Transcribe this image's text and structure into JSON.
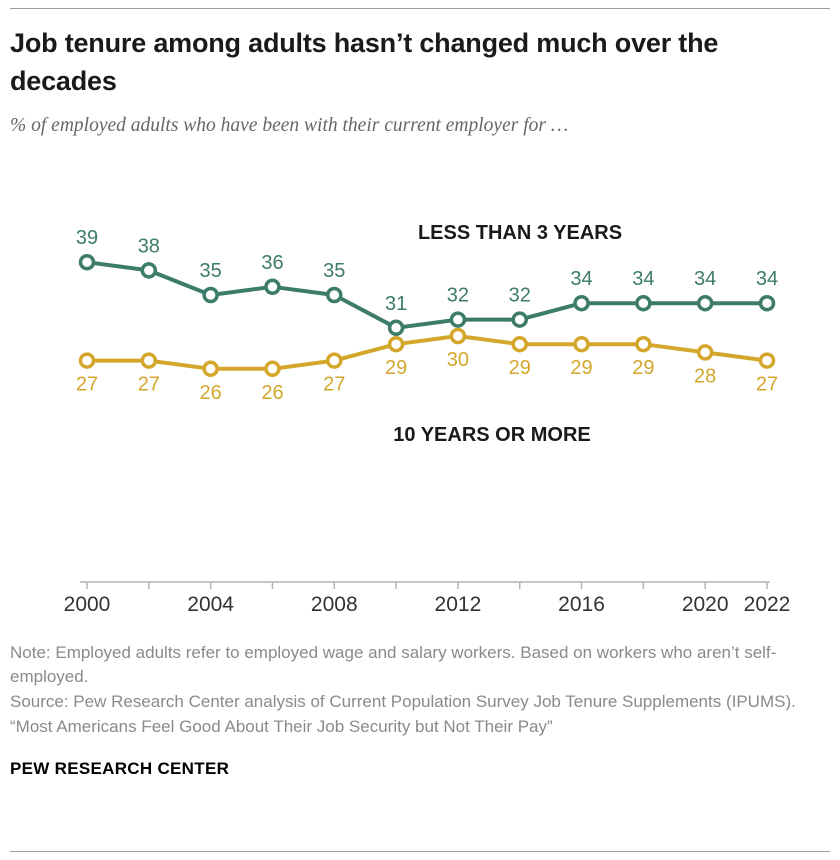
{
  "header": {
    "title": "Job tenure among adults hasn’t changed much over the decades",
    "subtitle": "% of employed adults who have been with their current employer for …"
  },
  "chart_data": {
    "type": "line",
    "x": [
      2000,
      2002,
      2004,
      2006,
      2008,
      2010,
      2012,
      2014,
      2016,
      2018,
      2020,
      2022
    ],
    "x_tick_labels": [
      2000,
      2004,
      2008,
      2012,
      2016,
      2020,
      2022
    ],
    "series": [
      {
        "name": "LESS THAN 3 YEARS",
        "color": "#3D7B6A",
        "values": [
          39,
          38,
          35,
          36,
          35,
          31,
          32,
          32,
          34,
          34,
          34,
          34
        ],
        "label_position": "above"
      },
      {
        "name": "10 YEARS OR MORE",
        "color": "#D4A72C",
        "values": [
          27,
          27,
          26,
          26,
          27,
          29,
          30,
          29,
          29,
          29,
          28,
          27
        ],
        "label_position": "below"
      }
    ],
    "ylim": [
      0,
      48
    ],
    "grid": false,
    "legend_position": "inline-annotations",
    "axis_color": "#b3b3b3",
    "tick_label_color": "#333333"
  },
  "footer": {
    "note_lines": [
      "Note: Employed adults refer to employed wage and salary workers. Based on workers who aren’t self-employed.",
      "Source: Pew Research Center analysis of Current Population Survey Job Tenure Supplements (IPUMS).",
      "“Most Americans Feel Good About Their Job Security but Not Their Pay”"
    ],
    "brand": "PEW RESEARCH CENTER"
  }
}
